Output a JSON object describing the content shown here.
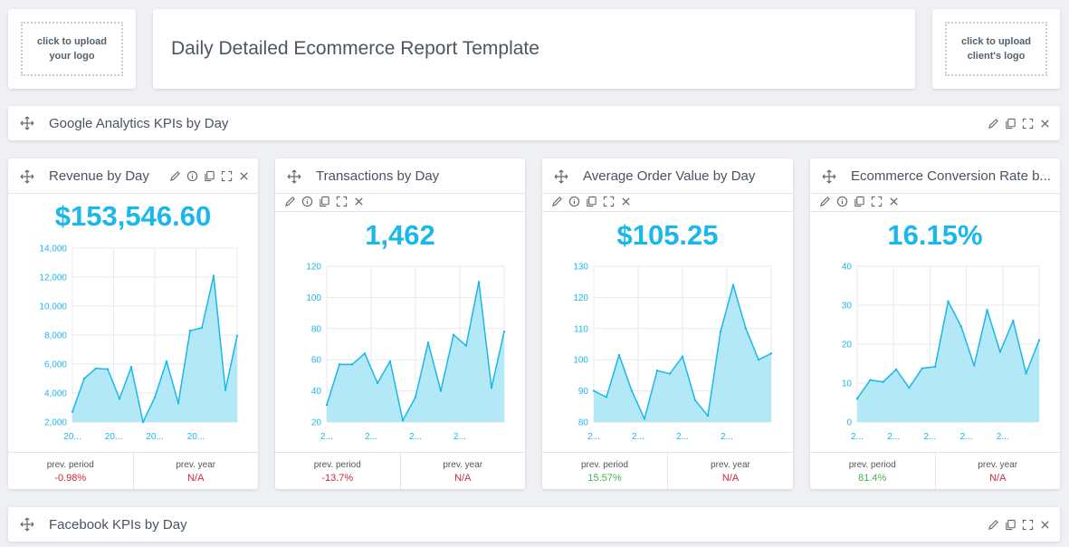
{
  "header": {
    "logo_left": "click to upload your logo",
    "title": "Daily Detailed Ecommerce Report Template",
    "logo_right": "click to upload client's logo"
  },
  "sections": {
    "google": "Google Analytics KPIs by Day",
    "facebook": "Facebook KPIs by Day"
  },
  "widgets": [
    {
      "title": "Revenue by Day",
      "value": "$153,546.60",
      "chart_data": {
        "type": "area",
        "y_ticks": [
          "14,000",
          "12,000",
          "10,000",
          "8,000",
          "6,000",
          "4,000",
          "2,000"
        ],
        "ylim": [
          2000,
          14000
        ],
        "x_ticks": [
          "20...",
          "20...",
          "20...",
          "20..."
        ],
        "values": [
          2700,
          5000,
          5700,
          5650,
          3600,
          5800,
          2000,
          3700,
          6200,
          3300,
          8300,
          8500,
          12100,
          4200,
          7950
        ]
      },
      "footer": {
        "period_label": "prev. period",
        "period_value": "-0.98%",
        "period_status": "neg",
        "year_label": "prev. year",
        "year_value": "N/A"
      }
    },
    {
      "title": "Transactions by Day",
      "value": "1,462",
      "chart_data": {
        "type": "area",
        "y_ticks": [
          "120",
          "100",
          "80",
          "60",
          "40",
          "20"
        ],
        "ylim": [
          20,
          120
        ],
        "x_ticks": [
          "2...",
          "2...",
          "2...",
          "2..."
        ],
        "values": [
          31,
          57,
          57,
          64,
          45,
          59,
          21,
          36,
          71,
          40,
          76,
          69,
          110,
          42,
          78
        ]
      },
      "footer": {
        "period_label": "prev. period",
        "period_value": "-13.7%",
        "period_status": "neg",
        "year_label": "prev. year",
        "year_value": "N/A"
      }
    },
    {
      "title": "Average Order Value by Day",
      "value": "$105.25",
      "chart_data": {
        "type": "area",
        "y_ticks": [
          "130",
          "120",
          "110",
          "100",
          "90",
          "80"
        ],
        "ylim": [
          80,
          130
        ],
        "x_ticks": [
          "2...",
          "2...",
          "2...",
          "2..."
        ],
        "values": [
          90,
          88,
          101.5,
          90,
          81,
          96.5,
          95.5,
          101,
          87,
          82,
          109,
          124,
          110,
          100,
          102
        ]
      },
      "footer": {
        "period_label": "prev. period",
        "period_value": "15.57%",
        "period_status": "pos",
        "year_label": "prev. year",
        "year_value": "N/A"
      }
    },
    {
      "title": "Ecommerce Conversion Rate b...",
      "value": "16.15%",
      "chart_data": {
        "type": "area",
        "y_ticks": [
          "40",
          "30",
          "20",
          "10",
          "0"
        ],
        "ylim": [
          0,
          40
        ],
        "x_ticks": [
          "2...",
          "2...",
          "2...",
          "2...",
          "2..."
        ],
        "values": [
          6,
          10.8,
          10.3,
          13.5,
          8.8,
          13.8,
          14.2,
          31,
          24.5,
          14.5,
          28.8,
          18,
          26,
          12.5,
          21
        ]
      },
      "footer": {
        "period_label": "prev. period",
        "period_value": "81.4%",
        "period_status": "pos",
        "year_label": "prev. year",
        "year_value": "N/A"
      }
    }
  ],
  "colors": {
    "accent": "#1ab8ea",
    "area_fill": "#b3e8f6",
    "negative": "#d0263a",
    "positive": "#43b549"
  },
  "icons": [
    "move-icon",
    "edit-icon",
    "info-icon",
    "copy-icon",
    "expand-icon",
    "close-icon"
  ]
}
